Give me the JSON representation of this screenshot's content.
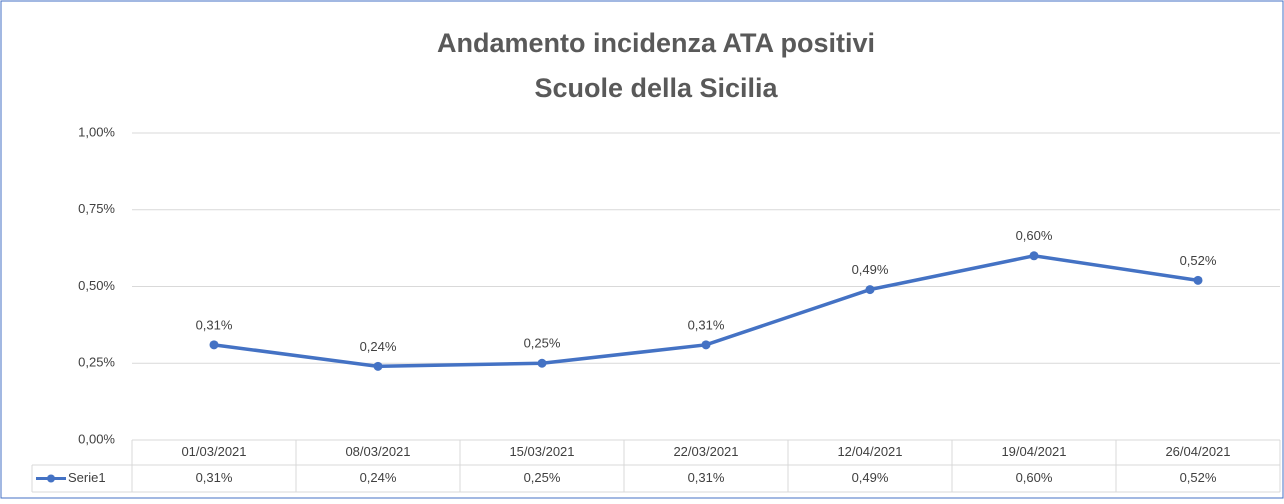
{
  "chart_data": {
    "type": "line",
    "title": "Andamento incidenza ATA positivi",
    "subtitle": "Scuole della Sicilia",
    "categories": [
      "01/03/2021",
      "08/03/2021",
      "15/03/2021",
      "22/03/2021",
      "12/04/2021",
      "19/04/2021",
      "26/04/2021"
    ],
    "series": [
      {
        "name": "Serie1",
        "color": "#4472c4",
        "values": [
          0.31,
          0.24,
          0.25,
          0.31,
          0.49,
          0.6,
          0.52
        ],
        "value_labels": [
          "0,31%",
          "0,24%",
          "0,25%",
          "0,31%",
          "0,49%",
          "0,60%",
          "0,52%"
        ]
      }
    ],
    "ylim": [
      0,
      1
    ],
    "yticks": [
      {
        "value": 0,
        "label": "0,00%"
      },
      {
        "value": 0.25,
        "label": "0,25%"
      },
      {
        "value": 0.5,
        "label": "0,50%"
      },
      {
        "value": 0.75,
        "label": "0,75%"
      },
      {
        "value": 1,
        "label": "1,00%"
      }
    ],
    "grid": true,
    "data_table": true
  }
}
